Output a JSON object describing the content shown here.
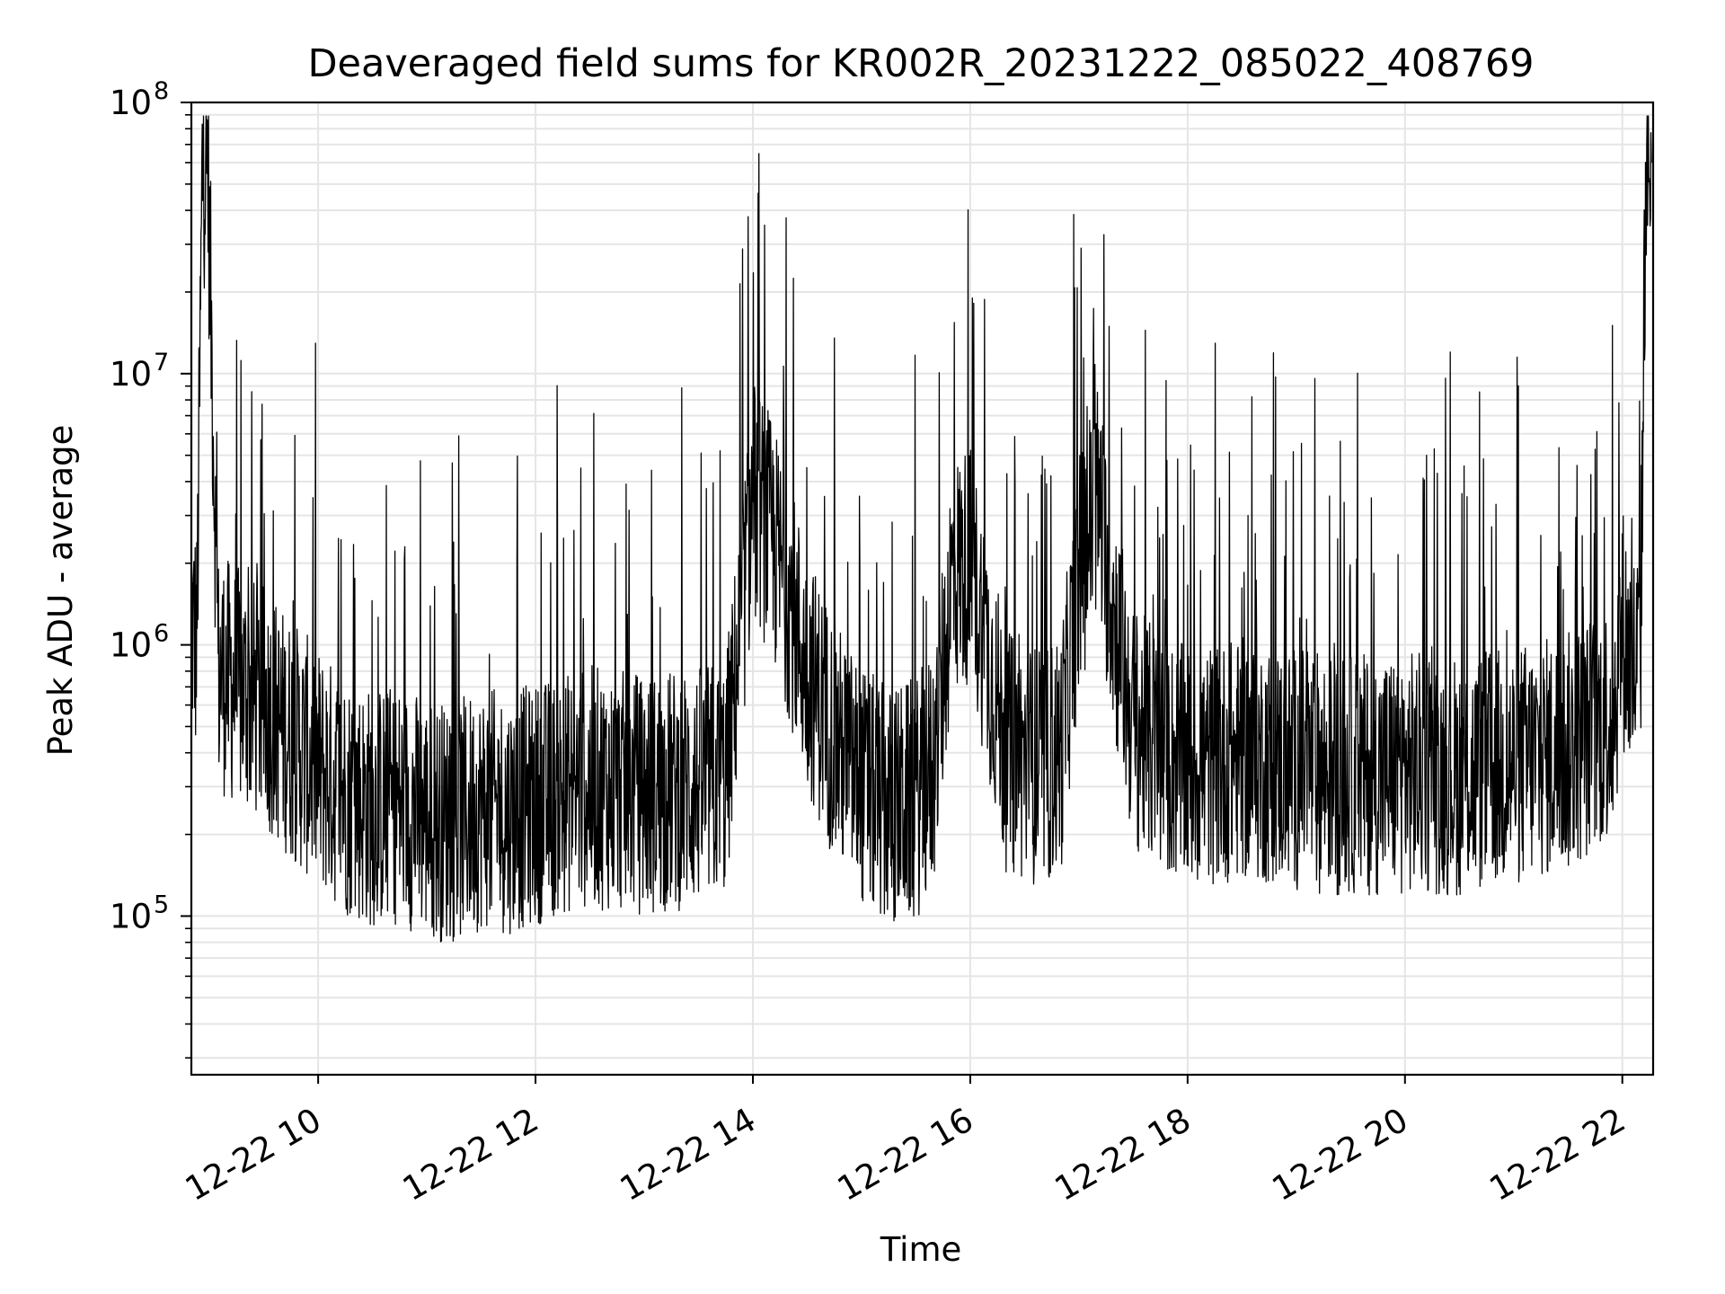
{
  "chart_data": {
    "type": "line",
    "title": "Deaveraged field sums for KR002R_20231222_085022_408769",
    "xlabel": "Time",
    "ylabel": "Peak ADU - average",
    "yscale": "log",
    "ylim": [
      26000,
      100000000
    ],
    "xlim": [
      "2023-12-22 08:50",
      "2023-12-22 22:17"
    ],
    "grid": true,
    "x_ticks": [
      {
        "time": "2023-12-22 10:00",
        "label": "12-22 10"
      },
      {
        "time": "2023-12-22 12:00",
        "label": "12-22 12"
      },
      {
        "time": "2023-12-22 14:00",
        "label": "12-22 14"
      },
      {
        "time": "2023-12-22 16:00",
        "label": "12-22 16"
      },
      {
        "time": "2023-12-22 18:00",
        "label": "12-22 18"
      },
      {
        "time": "2023-12-22 20:00",
        "label": "12-22 20"
      },
      {
        "time": "2023-12-22 22:00",
        "label": "12-22 22"
      }
    ],
    "y_ticks": [
      {
        "value": 100000,
        "base": "10",
        "exp": "5"
      },
      {
        "value": 1000000,
        "base": "10",
        "exp": "6"
      },
      {
        "value": 10000000,
        "base": "10",
        "exp": "7"
      },
      {
        "value": 100000000,
        "base": "10",
        "exp": "8"
      }
    ],
    "series": [
      {
        "color": "#000000",
        "x": [
          "2023-12-22 08:50",
          "2023-12-22 08:53",
          "2023-12-22 08:56",
          "2023-12-22 08:59",
          "2023-12-22 09:05",
          "2023-12-22 09:15",
          "2023-12-22 09:30",
          "2023-12-22 09:45",
          "2023-12-22 10:00",
          "2023-12-22 10:15",
          "2023-12-22 10:30",
          "2023-12-22 10:45",
          "2023-12-22 11:00",
          "2023-12-22 11:15",
          "2023-12-22 11:30",
          "2023-12-22 11:45",
          "2023-12-22 12:00",
          "2023-12-22 12:15",
          "2023-12-22 12:30",
          "2023-12-22 12:45",
          "2023-12-22 13:00",
          "2023-12-22 13:15",
          "2023-12-22 13:30",
          "2023-12-22 13:45",
          "2023-12-22 13:55",
          "2023-12-22 14:00",
          "2023-12-22 14:10",
          "2023-12-22 14:20",
          "2023-12-22 14:30",
          "2023-12-22 14:45",
          "2023-12-22 15:00",
          "2023-12-22 15:15",
          "2023-12-22 15:30",
          "2023-12-22 15:40",
          "2023-12-22 15:50",
          "2023-12-22 16:00",
          "2023-12-22 16:10",
          "2023-12-22 16:20",
          "2023-12-22 16:40",
          "2023-12-22 16:50",
          "2023-12-22 17:00",
          "2023-12-22 17:10",
          "2023-12-22 17:20",
          "2023-12-22 17:30",
          "2023-12-22 17:45",
          "2023-12-22 18:00",
          "2023-12-22 18:30",
          "2023-12-22 19:00",
          "2023-12-22 19:30",
          "2023-12-22 20:00",
          "2023-12-22 20:30",
          "2023-12-22 21:00",
          "2023-12-22 21:30",
          "2023-12-22 21:45",
          "2023-12-22 21:55",
          "2023-12-22 22:00",
          "2023-12-22 22:05",
          "2023-12-22 22:10",
          "2023-12-22 22:13",
          "2023-12-22 22:16"
        ],
        "y": [
          1200000,
          1000000,
          55000000,
          62000000,
          800000,
          700000,
          600000,
          450000,
          350000,
          280000,
          250000,
          260000,
          230000,
          220000,
          250000,
          240000,
          260000,
          280000,
          300000,
          290000,
          280000,
          290000,
          300000,
          320000,
          1500000,
          3500000,
          2500000,
          1500000,
          800000,
          450000,
          300000,
          250000,
          270000,
          350000,
          1800000,
          2000000,
          900000,
          400000,
          350000,
          400000,
          1800000,
          3500000,
          1200000,
          500000,
          400000,
          350000,
          380000,
          350000,
          330000,
          340000,
          330000,
          360000,
          400000,
          480000,
          550000,
          1200000,
          800000,
          900000,
          65000000,
          60000000
        ]
      }
    ]
  }
}
